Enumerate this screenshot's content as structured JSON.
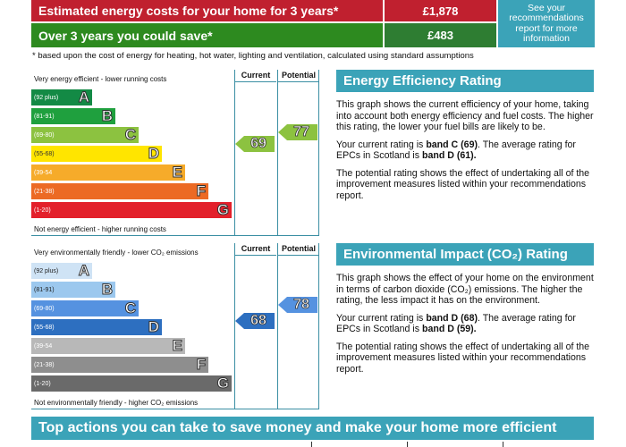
{
  "costs": {
    "row1_label": "Estimated energy costs for your home for 3 years*",
    "row1_value": "£1,878",
    "row2_label": "Over 3 years you could save*",
    "row2_value": "£483",
    "side_note": "See your recommendations report for more information",
    "footnote": "* based upon the cost of energy for heating, hot water, lighting and ventilation, calculated using standard assumptions"
  },
  "energy_chart": {
    "top_caption": "Very energy efficient - lower running costs",
    "bottom_caption": "Not energy efficient - higher running costs",
    "current_header": "Current",
    "potential_header": "Potential",
    "current": "69",
    "potential": "77",
    "bands": [
      {
        "range": "(92 plus)",
        "letter": "A",
        "color": "#138a45"
      },
      {
        "range": "(81-91)",
        "letter": "B",
        "color": "#1fa03e"
      },
      {
        "range": "(69-80)",
        "letter": "C",
        "color": "#8cc240"
      },
      {
        "range": "(55-68)",
        "letter": "D",
        "color": "#ffe500"
      },
      {
        "range": "(39-54",
        "letter": "E",
        "color": "#f6ab2a"
      },
      {
        "range": "(21-38)",
        "letter": "F",
        "color": "#ec6a24"
      },
      {
        "range": "(1-20)",
        "letter": "G",
        "color": "#e3202b"
      }
    ]
  },
  "env_chart": {
    "top_caption": "Very environmentally friendly - lower CO₂ emissions",
    "bottom_caption": "Not environmentally friendly - higher CO₂ emissions",
    "current_header": "Current",
    "potential_header": "Potential",
    "current": "68",
    "potential": "78",
    "bands": [
      {
        "range": "(92 plus)",
        "letter": "A",
        "color": "#cfe3f5"
      },
      {
        "range": "(81-91)",
        "letter": "B",
        "color": "#9cc8ee"
      },
      {
        "range": "(69-80)",
        "letter": "C",
        "color": "#5592e0"
      },
      {
        "range": "(55-68)",
        "letter": "D",
        "color": "#2d6fc0"
      },
      {
        "range": "(39-54",
        "letter": "E",
        "color": "#b8b8b8"
      },
      {
        "range": "(21-38)",
        "letter": "F",
        "color": "#8e8e8e"
      },
      {
        "range": "(1-20)",
        "letter": "G",
        "color": "#6a6a6a"
      }
    ]
  },
  "eer": {
    "title": "Energy Efficiency Rating",
    "p1": "This graph shows the current efficiency of your home, taking into account both energy efficiency and fuel costs. The higher this rating, the lower your fuel bills are likely to be.",
    "p2a": "Your current rating is ",
    "p2b": "band C (69)",
    "p2c": ". The average rating for EPCs in Scotland is ",
    "p2d": "band D (61).",
    "p3": "The potential rating shows the effect of undertaking all of the improvement measures listed within your recommendations report."
  },
  "eir": {
    "title": "Environmental Impact (CO₂) Rating",
    "p1": "This graph shows the effect of your home on the environment in terms of carbon dioxide (CO₂) emissions. The higher the rating, the less impact it has on the environment.",
    "p2a": "Your current rating is ",
    "p2b": "band D (68)",
    "p2c": ". The average rating for EPCs in Scotland is ",
    "p2d": "band D (59).",
    "p3": "The potential rating shows the effect of undertaking all of the improvement measures listed within your recommendations report."
  },
  "actions": {
    "title": "Top actions you can take to save money and make your home more efficient"
  }
}
